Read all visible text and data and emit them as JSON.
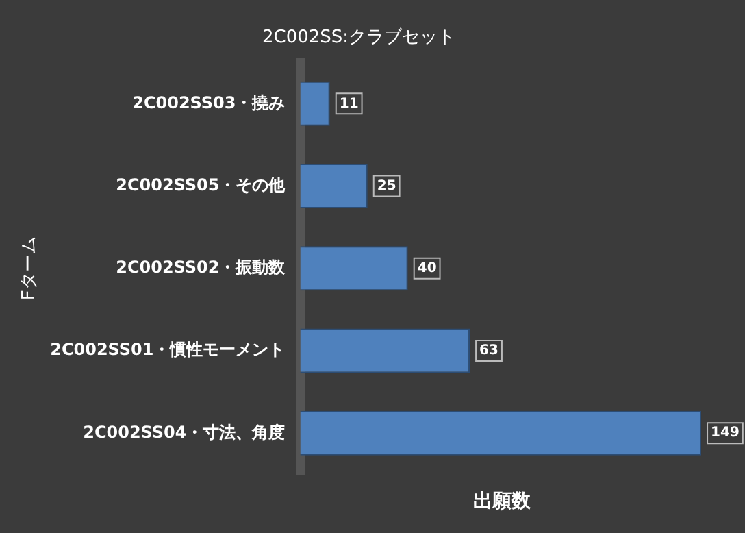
{
  "chart_data": {
    "type": "bar",
    "orientation": "horizontal",
    "title": "2C002SS:クラブセット",
    "xlabel": "出願数",
    "ylabel": "Fターム",
    "categories": [
      "2C002SS03・撓み",
      "2C002SS05・その他",
      "2C002SS02・振動数",
      "2C002SS01・慣性モーメント",
      "2C002SS04・寸法、角度"
    ],
    "values": [
      11,
      25,
      40,
      63,
      149
    ],
    "color": "#4f81bd",
    "data_labels": true
  }
}
